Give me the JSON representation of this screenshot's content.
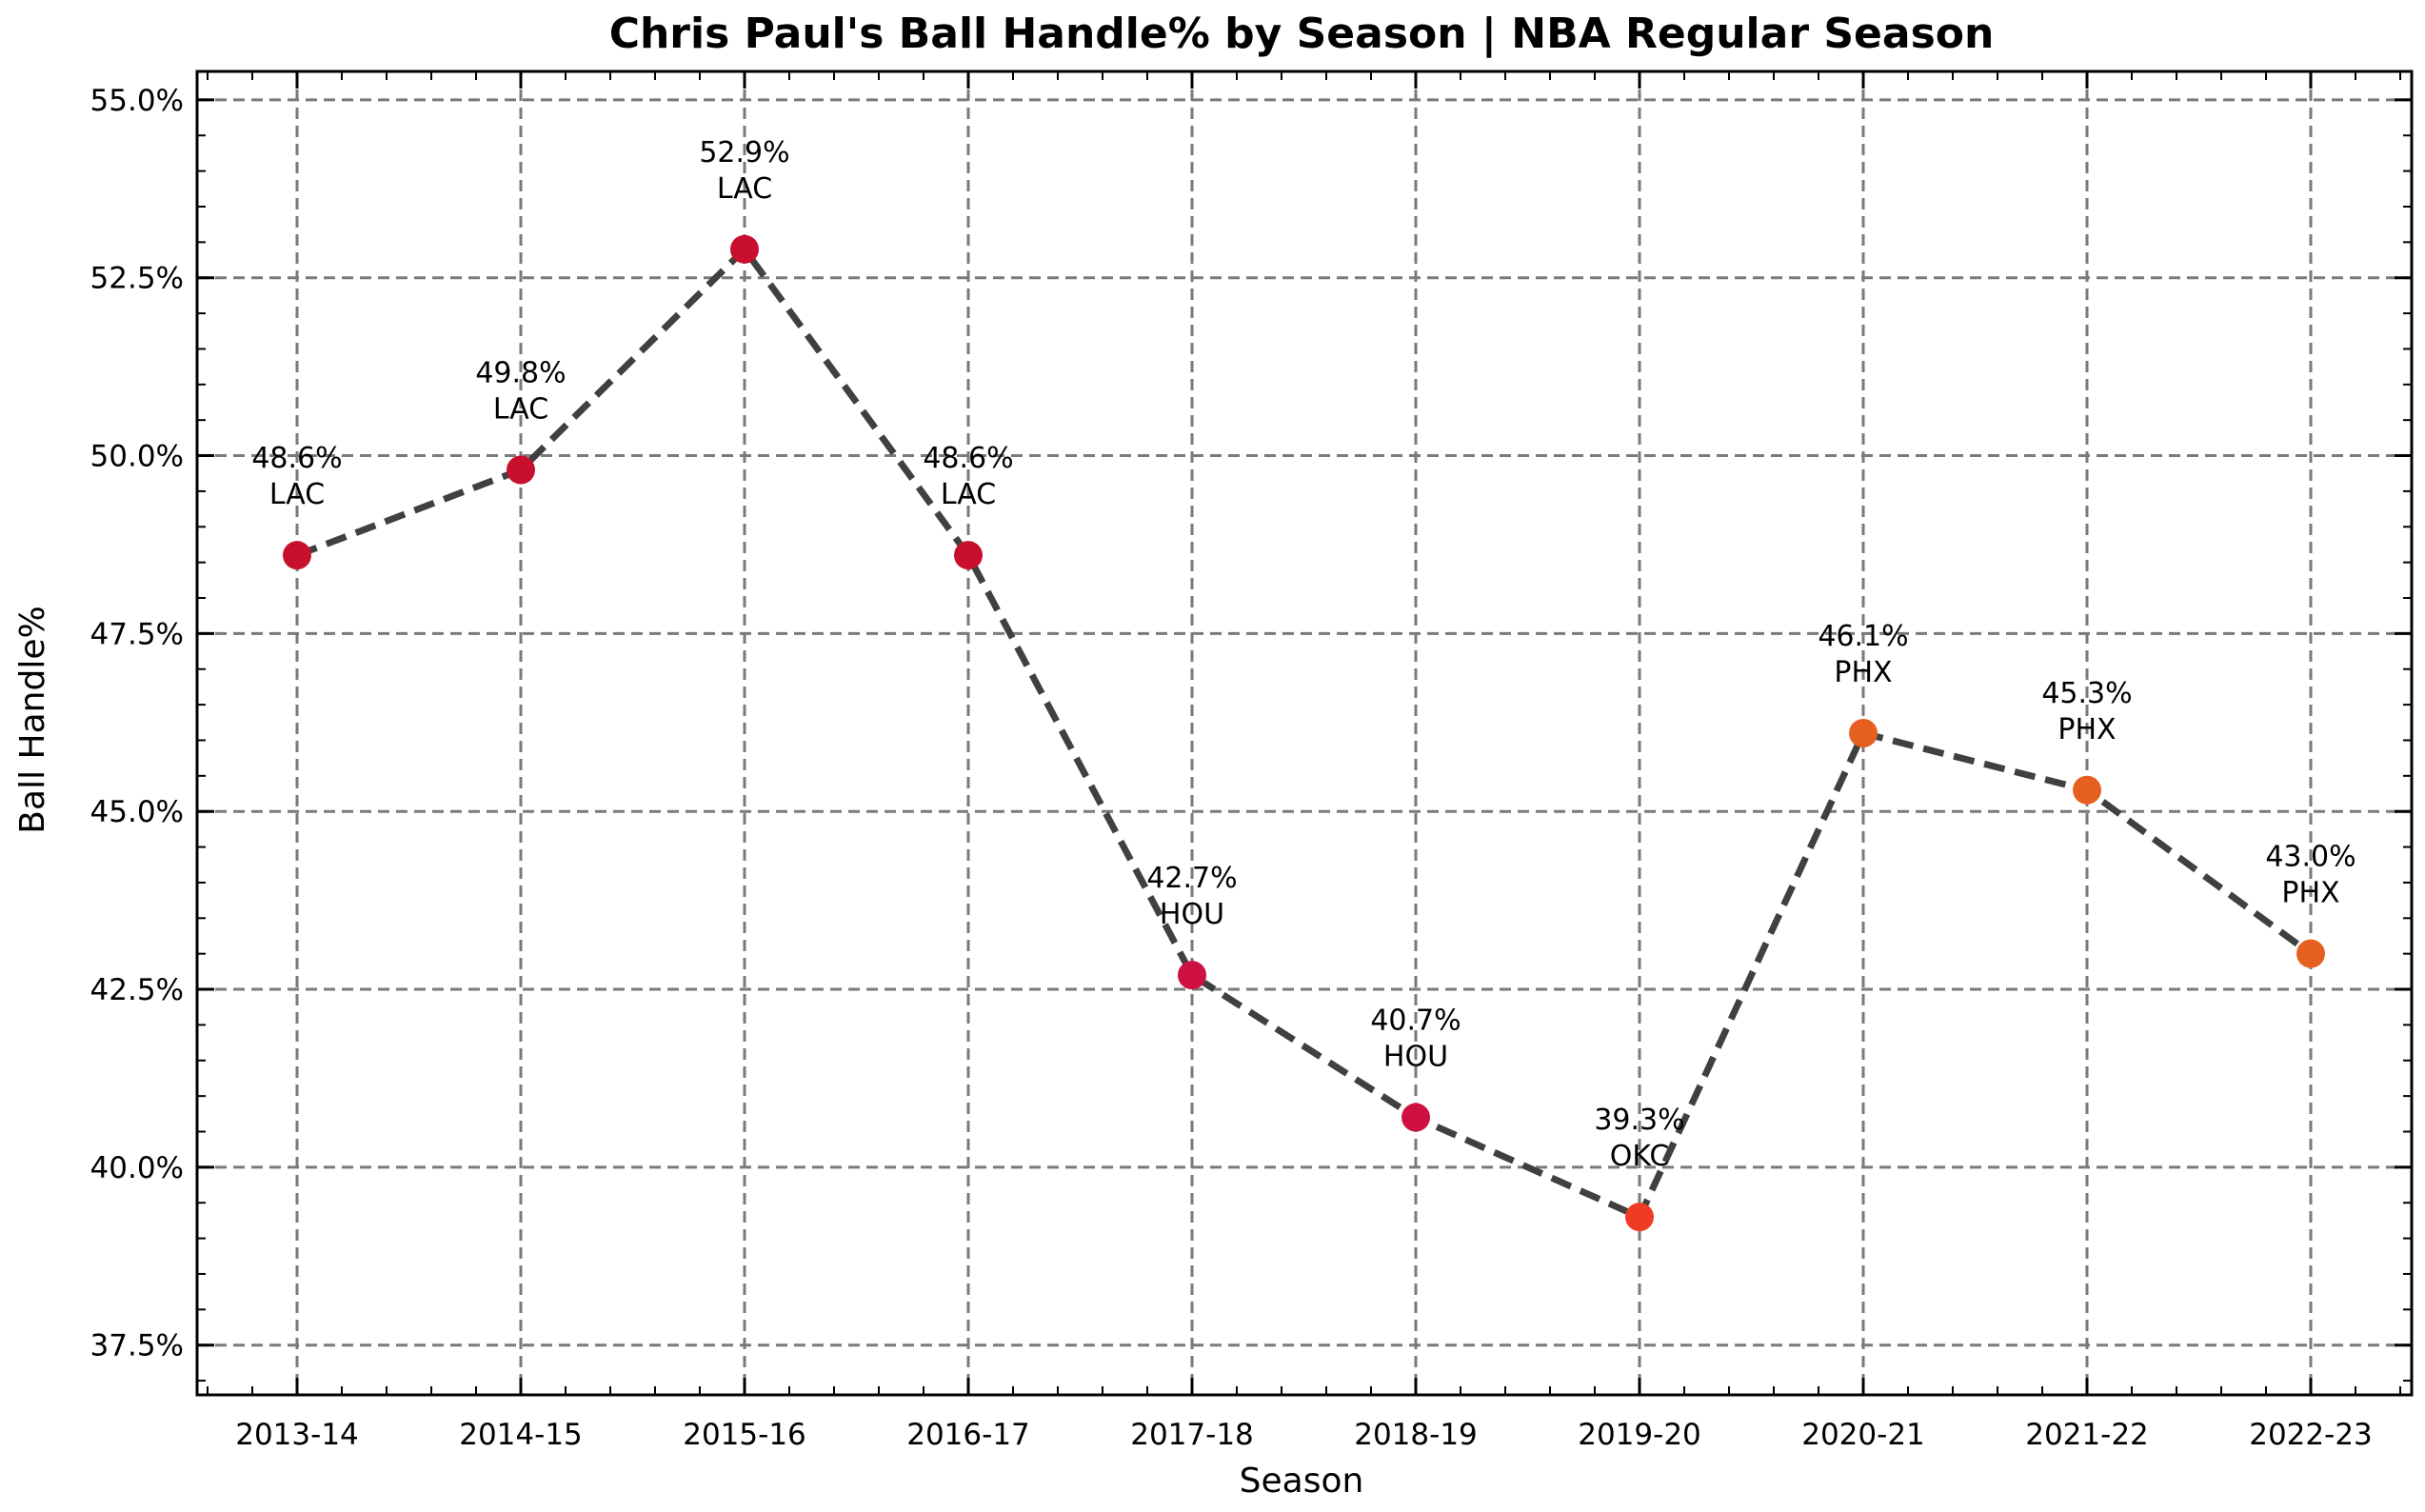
{
  "chart_data": {
    "type": "line",
    "title": "Chris Paul's Ball Handle% by Season | NBA Regular Season",
    "xlabel": "Season",
    "ylabel": "Ball Handle%",
    "categories": [
      "2013-14",
      "2014-15",
      "2015-16",
      "2016-17",
      "2017-18",
      "2018-19",
      "2019-20",
      "2020-21",
      "2021-22",
      "2022-23"
    ],
    "series": [
      {
        "values": [
          48.6,
          49.8,
          52.9,
          48.6,
          42.7,
          40.7,
          39.3,
          46.1,
          45.3,
          43.0
        ],
        "line_color": "#404040",
        "line_style": "dashed"
      }
    ],
    "point_labels": [
      {
        "value": "48.6%",
        "team": "LAC"
      },
      {
        "value": "49.8%",
        "team": "LAC"
      },
      {
        "value": "52.9%",
        "team": "LAC"
      },
      {
        "value": "48.6%",
        "team": "LAC"
      },
      {
        "value": "42.7%",
        "team": "HOU"
      },
      {
        "value": "40.7%",
        "team": "HOU"
      },
      {
        "value": "39.3%",
        "team": "OKC"
      },
      {
        "value": "46.1%",
        "team": "PHX"
      },
      {
        "value": "45.3%",
        "team": "PHX"
      },
      {
        "value": "43.0%",
        "team": "PHX"
      }
    ],
    "marker_colors": [
      "#c8102e",
      "#c8102e",
      "#c8102e",
      "#c8102e",
      "#ce1141",
      "#ce1141",
      "#ef3b24",
      "#e56020",
      "#e56020",
      "#e56020"
    ],
    "yticks": [
      37.5,
      40.0,
      42.5,
      45.0,
      47.5,
      50.0,
      52.5,
      55.0
    ],
    "ytick_labels": [
      "37.5%",
      "40.0%",
      "42.5%",
      "45.0%",
      "47.5%",
      "50.0%",
      "52.5%",
      "55.0%"
    ],
    "ylim": [
      36.8,
      55.4
    ],
    "grid": true,
    "grid_style": "dashed",
    "legend": false
  }
}
